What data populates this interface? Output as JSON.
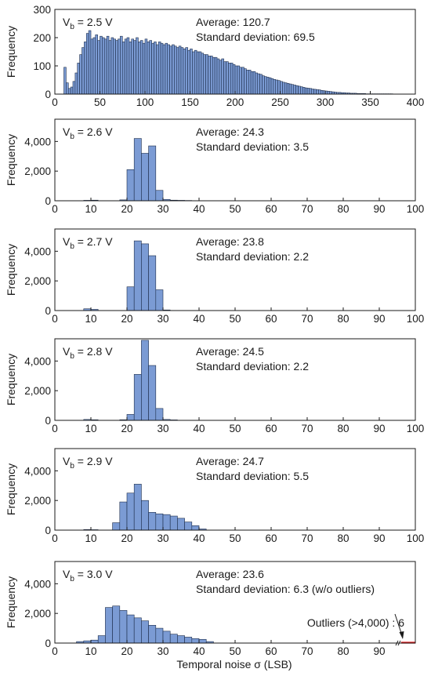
{
  "colors": {
    "bar_fill": "#7b9bd4",
    "bar_stroke": "#1c2c4a",
    "axis": "#1a1a1a",
    "outlier": "#e41a1c"
  },
  "x_label": "Temporal noise σ (LSB)",
  "chart_data": [
    {
      "type": "bar",
      "ylabel": "Frequency",
      "vb_label": "2.5 V",
      "average_label": "Average: 120.7",
      "std_label": "Standard deviation: 69.5",
      "xlim": [
        0,
        400
      ],
      "ylim": [
        0,
        300
      ],
      "x_ticks": [
        0,
        50,
        100,
        150,
        200,
        250,
        300,
        350,
        400
      ],
      "y_ticks": [
        0,
        100,
        200,
        300
      ],
      "y_tick_labels": [
        "0",
        "100",
        "200",
        "300"
      ],
      "bin_width": 2.5,
      "bins": [
        [
          10,
          95
        ],
        [
          12.5,
          40
        ],
        [
          15,
          20
        ],
        [
          17.5,
          25
        ],
        [
          20,
          45
        ],
        [
          22.5,
          75
        ],
        [
          25,
          110
        ],
        [
          27.5,
          140
        ],
        [
          30,
          165
        ],
        [
          32.5,
          185
        ],
        [
          35,
          215
        ],
        [
          37.5,
          225
        ],
        [
          40,
          195
        ],
        [
          42.5,
          200
        ],
        [
          45,
          210
        ],
        [
          47.5,
          190
        ],
        [
          50,
          205
        ],
        [
          52.5,
          200
        ],
        [
          55,
          195
        ],
        [
          57.5,
          205
        ],
        [
          60,
          190
        ],
        [
          62.5,
          200
        ],
        [
          65,
          195
        ],
        [
          67.5,
          190
        ],
        [
          70,
          195
        ],
        [
          72.5,
          205
        ],
        [
          75,
          185
        ],
        [
          77.5,
          195
        ],
        [
          80,
          200
        ],
        [
          82.5,
          185
        ],
        [
          85,
          195
        ],
        [
          87.5,
          190
        ],
        [
          90,
          200
        ],
        [
          92.5,
          185
        ],
        [
          95,
          190
        ],
        [
          97.5,
          180
        ],
        [
          100,
          195
        ],
        [
          102.5,
          185
        ],
        [
          105,
          190
        ],
        [
          107.5,
          180
        ],
        [
          110,
          185
        ],
        [
          112.5,
          175
        ],
        [
          115,
          185
        ],
        [
          117.5,
          180
        ],
        [
          120,
          175
        ],
        [
          122.5,
          180
        ],
        [
          125,
          175
        ],
        [
          127.5,
          170
        ],
        [
          130,
          175
        ],
        [
          132.5,
          170
        ],
        [
          135,
          165
        ],
        [
          137.5,
          170
        ],
        [
          140,
          165
        ],
        [
          142.5,
          160
        ],
        [
          145,
          165
        ],
        [
          147.5,
          155
        ],
        [
          150,
          160
        ],
        [
          152.5,
          150
        ],
        [
          155,
          155
        ],
        [
          157.5,
          150
        ],
        [
          160,
          150
        ],
        [
          162.5,
          145
        ],
        [
          165,
          140
        ],
        [
          167.5,
          140
        ],
        [
          170,
          135
        ],
        [
          172.5,
          135
        ],
        [
          175,
          130
        ],
        [
          177.5,
          130
        ],
        [
          180,
          125
        ],
        [
          182.5,
          120
        ],
        [
          185,
          125
        ],
        [
          187.5,
          115
        ],
        [
          190,
          115
        ],
        [
          192.5,
          110
        ],
        [
          195,
          110
        ],
        [
          197.5,
          105
        ],
        [
          200,
          100
        ],
        [
          202.5,
          100
        ],
        [
          205,
          95
        ],
        [
          207.5,
          95
        ],
        [
          210,
          90
        ],
        [
          212.5,
          85
        ],
        [
          215,
          85
        ],
        [
          217.5,
          80
        ],
        [
          220,
          80
        ],
        [
          222.5,
          75
        ],
        [
          225,
          72
        ],
        [
          227.5,
          70
        ],
        [
          230,
          65
        ],
        [
          232.5,
          62
        ],
        [
          235,
          60
        ],
        [
          237.5,
          58
        ],
        [
          240,
          55
        ],
        [
          242.5,
          52
        ],
        [
          245,
          50
        ],
        [
          247.5,
          48
        ],
        [
          250,
          45
        ],
        [
          252.5,
          42
        ],
        [
          255,
          40
        ],
        [
          257.5,
          38
        ],
        [
          260,
          36
        ],
        [
          262.5,
          34
        ],
        [
          265,
          32
        ],
        [
          267.5,
          30
        ],
        [
          270,
          28
        ],
        [
          272.5,
          26
        ],
        [
          275,
          24
        ],
        [
          277.5,
          22
        ],
        [
          280,
          21
        ],
        [
          282.5,
          20
        ],
        [
          285,
          18
        ],
        [
          287.5,
          17
        ],
        [
          290,
          16
        ],
        [
          292.5,
          15
        ],
        [
          295,
          13
        ],
        [
          297.5,
          12
        ],
        [
          300,
          11
        ],
        [
          302.5,
          10
        ],
        [
          305,
          9
        ],
        [
          307.5,
          8
        ],
        [
          310,
          7
        ],
        [
          312.5,
          6
        ],
        [
          315,
          6
        ],
        [
          317.5,
          5
        ],
        [
          320,
          5
        ],
        [
          322.5,
          4
        ],
        [
          325,
          4
        ],
        [
          327.5,
          3
        ],
        [
          330,
          3
        ],
        [
          332.5,
          3
        ],
        [
          335,
          2
        ],
        [
          337.5,
          2
        ],
        [
          340,
          2
        ],
        [
          342.5,
          2
        ],
        [
          345,
          1
        ],
        [
          347.5,
          1
        ],
        [
          350,
          1
        ],
        [
          352.5,
          1
        ],
        [
          355,
          1
        ],
        [
          357.5,
          1
        ],
        [
          360,
          1
        ],
        [
          362.5,
          1
        ],
        [
          365,
          1
        ],
        [
          367.5,
          1
        ],
        [
          370,
          1
        ],
        [
          372.5,
          1
        ]
      ]
    },
    {
      "type": "bar",
      "ylabel": "Frequency",
      "vb_label": "2.6 V",
      "average_label": "Average: 24.3",
      "std_label": "Standard deviation: 3.5",
      "xlim": [
        0,
        100
      ],
      "ylim": [
        0,
        5500
      ],
      "x_ticks": [
        0,
        10,
        20,
        30,
        40,
        50,
        60,
        70,
        80,
        90,
        100
      ],
      "y_ticks": [
        0,
        2000,
        4000
      ],
      "y_tick_labels": [
        "0",
        "2,000",
        "4,000"
      ],
      "bin_width": 2,
      "bins": [
        [
          8,
          30
        ],
        [
          10,
          40
        ],
        [
          18,
          60
        ],
        [
          20,
          2100
        ],
        [
          22,
          4200
        ],
        [
          24,
          3200
        ],
        [
          26,
          3700
        ],
        [
          28,
          700
        ],
        [
          30,
          90
        ],
        [
          32,
          40
        ],
        [
          34,
          30
        ],
        [
          36,
          20
        ]
      ]
    },
    {
      "type": "bar",
      "ylabel": "Frequency",
      "vb_label": "2.7 V",
      "average_label": "Average: 23.8",
      "std_label": "Standard deviation: 2.2",
      "xlim": [
        0,
        100
      ],
      "ylim": [
        0,
        5500
      ],
      "x_ticks": [
        0,
        10,
        20,
        30,
        40,
        50,
        60,
        70,
        80,
        90,
        100
      ],
      "y_ticks": [
        0,
        2000,
        4000
      ],
      "y_tick_labels": [
        "0",
        "2,000",
        "4,000"
      ],
      "bin_width": 2,
      "bins": [
        [
          8,
          120
        ],
        [
          10,
          80
        ],
        [
          20,
          1600
        ],
        [
          22,
          4700
        ],
        [
          24,
          4500
        ],
        [
          26,
          3700
        ],
        [
          28,
          1400
        ],
        [
          30,
          40
        ]
      ]
    },
    {
      "type": "bar",
      "ylabel": "Frequency",
      "vb_label": "2.8 V",
      "average_label": "Average: 24.5",
      "std_label": "Standard deviation: 2.2",
      "xlim": [
        0,
        100
      ],
      "ylim": [
        0,
        5500
      ],
      "x_ticks": [
        0,
        10,
        20,
        30,
        40,
        50,
        60,
        70,
        80,
        90,
        100
      ],
      "y_ticks": [
        0,
        2000,
        4000
      ],
      "y_tick_labels": [
        "0",
        "2,000",
        "4,000"
      ],
      "bin_width": 2,
      "bins": [
        [
          8,
          60
        ],
        [
          10,
          40
        ],
        [
          18,
          40
        ],
        [
          20,
          400
        ],
        [
          22,
          3100
        ],
        [
          24,
          5400
        ],
        [
          26,
          3700
        ],
        [
          28,
          800
        ],
        [
          30,
          60
        ],
        [
          32,
          30
        ]
      ]
    },
    {
      "type": "bar",
      "ylabel": "Frequency",
      "vb_label": "2.9 V",
      "average_label": "Average: 24.7",
      "std_label": "Standard deviation: 5.5",
      "xlim": [
        0,
        100
      ],
      "ylim": [
        0,
        5500
      ],
      "x_ticks": [
        0,
        10,
        20,
        30,
        40,
        50,
        60,
        70,
        80,
        90,
        100
      ],
      "y_ticks": [
        0,
        2000,
        4000
      ],
      "y_tick_labels": [
        "0",
        "2,000",
        "4,000"
      ],
      "bin_width": 2,
      "bins": [
        [
          8,
          40
        ],
        [
          10,
          30
        ],
        [
          16,
          500
        ],
        [
          18,
          1900
        ],
        [
          20,
          2500
        ],
        [
          22,
          3100
        ],
        [
          24,
          2000
        ],
        [
          26,
          1200
        ],
        [
          28,
          1100
        ],
        [
          30,
          1050
        ],
        [
          32,
          950
        ],
        [
          34,
          800
        ],
        [
          36,
          550
        ],
        [
          38,
          300
        ],
        [
          40,
          80
        ]
      ]
    },
    {
      "type": "bar",
      "ylabel": "Frequency",
      "vb_label": "3.0 V",
      "average_label": "Average: 23.6",
      "std_label": "Standard deviation: 6.3 (w/o outliers)",
      "outlier_label": "Outliers (>4,000) : 6",
      "xlim": [
        0,
        100
      ],
      "ylim": [
        0,
        5500
      ],
      "x_ticks": [
        0,
        10,
        20,
        30,
        40,
        50,
        60,
        70,
        80,
        90
      ],
      "y_ticks": [
        0,
        2000,
        4000
      ],
      "y_tick_labels": [
        "0",
        "2,000",
        "4,000"
      ],
      "bin_width": 2,
      "bins": [
        [
          6,
          100
        ],
        [
          8,
          150
        ],
        [
          10,
          200
        ],
        [
          12,
          500
        ],
        [
          14,
          2400
        ],
        [
          16,
          2500
        ],
        [
          18,
          2200
        ],
        [
          20,
          1900
        ],
        [
          22,
          1700
        ],
        [
          24,
          1500
        ],
        [
          26,
          1200
        ],
        [
          28,
          1000
        ],
        [
          30,
          800
        ],
        [
          32,
          600
        ],
        [
          34,
          500
        ],
        [
          36,
          400
        ],
        [
          38,
          300
        ],
        [
          40,
          250
        ],
        [
          42,
          100
        ]
      ]
    }
  ]
}
